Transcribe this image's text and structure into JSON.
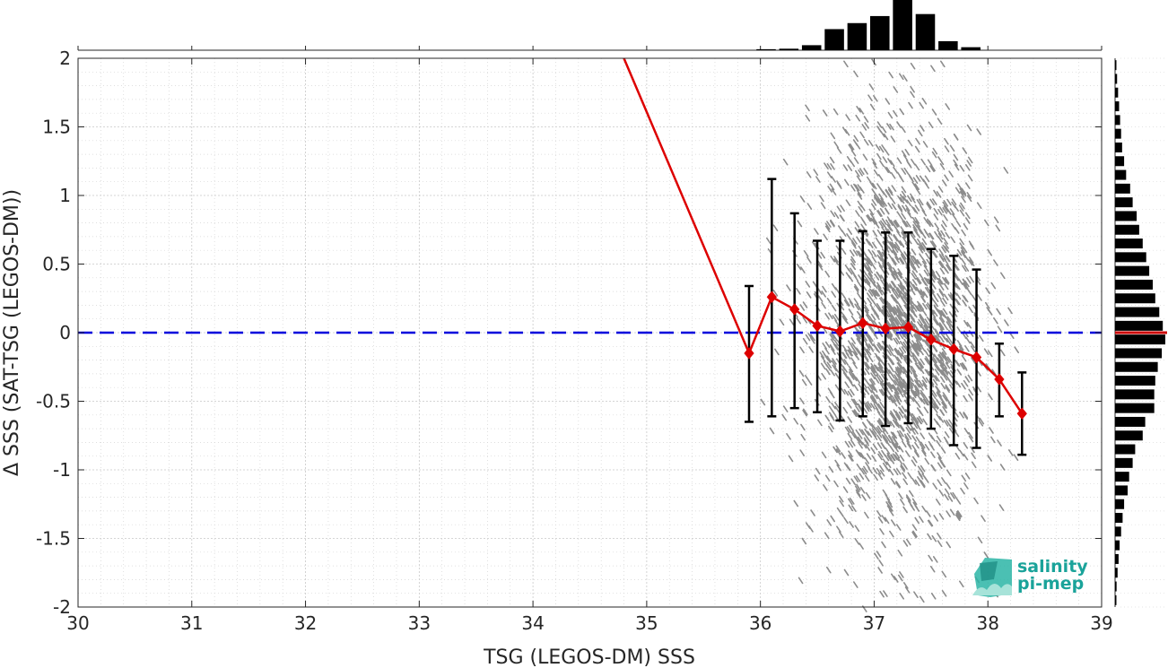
{
  "chart_data": {
    "type": "scatter",
    "xlabel": "TSG (LEGOS-DM) SSS",
    "ylabel": "Δ SSS (SAT-TSG (LEGOS-DM))",
    "xlim": [
      30,
      39
    ],
    "ylim": [
      -2,
      2
    ],
    "x_ticks": [
      "30",
      "31",
      "32",
      "33",
      "34",
      "35",
      "36",
      "37",
      "38",
      "39"
    ],
    "y_ticks": [
      "2",
      "1.5",
      "1",
      "0.5",
      "0",
      "-0.5",
      "-1",
      "-1.5",
      "-2"
    ],
    "grid": true,
    "reference_line": {
      "y": 0,
      "style": "dashed",
      "color": "#0000dd"
    },
    "scatter_cloud": {
      "color": "#8c8c8c",
      "x_range": [
        35.9,
        38.3
      ],
      "center_x": 37.2,
      "spread_sd": 0.55
    },
    "binned_mean": {
      "color": "#dd0000",
      "x": [
        34.8,
        35.9,
        36.1,
        36.3,
        36.5,
        36.7,
        36.9,
        37.1,
        37.3,
        37.5,
        37.7,
        37.9,
        38.1,
        38.3
      ],
      "y": [
        2.0,
        -0.15,
        0.26,
        0.17,
        0.05,
        0.01,
        0.07,
        0.03,
        0.04,
        -0.05,
        -0.12,
        -0.18,
        -0.34,
        -0.59
      ],
      "markers_from_index": 1
    },
    "error_bars": {
      "color": "#000000",
      "x": [
        35.9,
        36.1,
        36.3,
        36.5,
        36.7,
        36.9,
        37.1,
        37.3,
        37.5,
        37.7,
        37.9,
        38.1,
        38.3
      ],
      "lower": [
        -0.65,
        -0.61,
        -0.55,
        -0.58,
        -0.64,
        -0.61,
        -0.68,
        -0.66,
        -0.7,
        -0.82,
        -0.84,
        -0.61,
        -0.89
      ],
      "upper": [
        0.34,
        1.12,
        0.87,
        0.67,
        0.67,
        0.74,
        0.73,
        0.73,
        0.61,
        0.56,
        0.46,
        -0.08,
        -0.29
      ]
    },
    "top_histogram": {
      "x_centers": [
        36.05,
        36.25,
        36.45,
        36.65,
        36.85,
        37.05,
        37.25,
        37.45,
        37.65,
        37.85
      ],
      "counts": [
        0.02,
        0.03,
        0.1,
        0.42,
        0.54,
        0.68,
        1.0,
        0.72,
        0.18,
        0.06
      ]
    },
    "right_histogram": {
      "y_centers": [
        1.95,
        1.85,
        1.75,
        1.65,
        1.55,
        1.45,
        1.35,
        1.25,
        1.15,
        1.05,
        0.95,
        0.85,
        0.75,
        0.65,
        0.55,
        0.45,
        0.35,
        0.25,
        0.15,
        0.05,
        -0.05,
        -0.15,
        -0.25,
        -0.35,
        -0.45,
        -0.55,
        -0.65,
        -0.75,
        -0.85,
        -0.95,
        -1.05,
        -1.15,
        -1.25,
        -1.35,
        -1.45,
        -1.55,
        -1.65,
        -1.75,
        -1.85,
        -1.95
      ],
      "counts": [
        0.02,
        0.04,
        0.06,
        0.08,
        0.1,
        0.12,
        0.14,
        0.18,
        0.22,
        0.3,
        0.35,
        0.43,
        0.48,
        0.55,
        0.62,
        0.68,
        0.75,
        0.8,
        0.88,
        0.95,
        1.0,
        0.93,
        0.85,
        0.8,
        0.78,
        0.78,
        0.6,
        0.55,
        0.4,
        0.35,
        0.28,
        0.25,
        0.18,
        0.15,
        0.12,
        0.09,
        0.07,
        0.05,
        0.03,
        0.02
      ],
      "mean_line": {
        "y": 0,
        "color": "#cc0000"
      }
    }
  },
  "logo": {
    "line1": "salinity",
    "line2": "pi-mep",
    "color": "#1aa39a"
  }
}
